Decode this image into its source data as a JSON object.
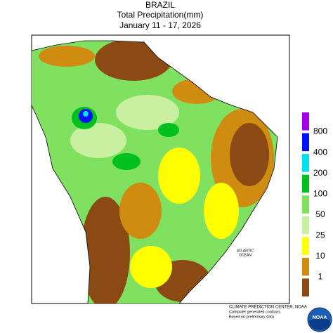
{
  "header": {
    "title": "BRAZIL",
    "subtitle": "Total Precipitation(mm)",
    "date": "January 11 - 17, 2026"
  },
  "legend": {
    "colors": [
      "#a000e8",
      "#0010ff",
      "#00e0f0",
      "#00c020",
      "#80e060",
      "#c8f0a0",
      "#ffff00",
      "#d08c10",
      "#8b4a14"
    ],
    "labels": [
      800,
      400,
      200,
      100,
      50,
      25,
      10,
      1
    ]
  },
  "map_labels": {
    "ocean": [
      "ATLANTIC",
      "OCEAN"
    ]
  },
  "footer": {
    "lines": [
      "CLIMATE PREDICTION CENTER, NOAA",
      "Computer generated contours",
      "Based on preliminary data"
    ]
  },
  "logo": "NOAA"
}
